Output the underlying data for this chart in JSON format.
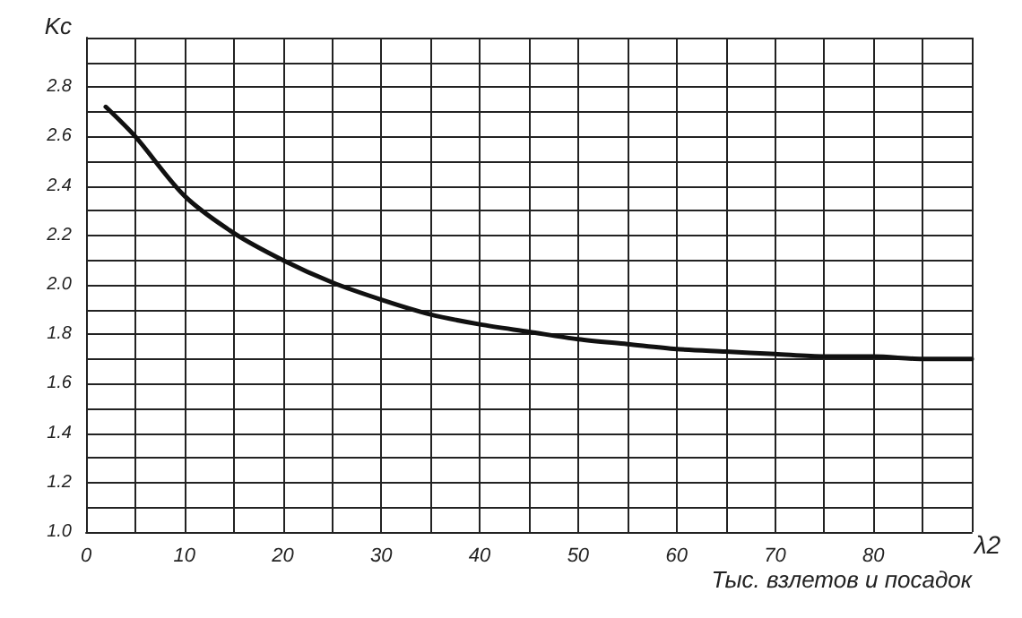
{
  "chart_data": {
    "type": "line",
    "xlabel": "Тыс. взлетов и посадок",
    "ylabel": "Kc",
    "annotations": [
      "λ2"
    ],
    "x": [
      2,
      5,
      10,
      15,
      20,
      25,
      30,
      35,
      40,
      45,
      50,
      55,
      60,
      65,
      70,
      75,
      80,
      85,
      90
    ],
    "series": [
      {
        "color": "#111111",
        "values": [
          2.72,
          2.6,
          2.36,
          2.21,
          2.1,
          2.01,
          1.94,
          1.88,
          1.84,
          1.81,
          1.78,
          1.76,
          1.74,
          1.73,
          1.72,
          1.71,
          1.71,
          1.7,
          1.7
        ]
      }
    ],
    "xlim": [
      0,
      90
    ],
    "ylim": [
      1,
      3
    ],
    "xticks": [
      {
        "value": 0,
        "label": "0"
      },
      {
        "value": 5,
        "label": null
      },
      10,
      {
        "value": 15,
        "label": null
      },
      20,
      {
        "value": 25,
        "label": null
      },
      30,
      {
        "value": 35,
        "label": null
      },
      40,
      {
        "value": 45,
        "label": null
      },
      50,
      {
        "value": 55,
        "label": null
      },
      60,
      {
        "value": 65,
        "label": null
      },
      70,
      {
        "value": 75,
        "label": null
      },
      80,
      {
        "value": 85,
        "label": null
      },
      {
        "value": 90,
        "label": null
      }
    ],
    "yticks": [
      {
        "value": 1,
        "label": "1.0"
      },
      {
        "value": 1.1,
        "label": null
      },
      1.2,
      {
        "value": 1.3,
        "label": null
      },
      1.4,
      {
        "value": 1.5,
        "label": null
      },
      1.6,
      {
        "value": 1.7,
        "label": null
      },
      1.8,
      {
        "value": 1.9,
        "label": null
      },
      {
        "value": 2,
        "label": "2.0"
      },
      {
        "value": 2.1,
        "label": null
      },
      2.2,
      {
        "value": 2.3,
        "label": null
      },
      2.4,
      {
        "value": 2.5,
        "label": null
      },
      2.6,
      {
        "value": 2.7,
        "label": null
      },
      2.8,
      {
        "value": 2.9,
        "label": null
      },
      {
        "value": 3,
        "label": null
      }
    ],
    "grid": true,
    "marker": "none",
    "line_style": "solid"
  }
}
